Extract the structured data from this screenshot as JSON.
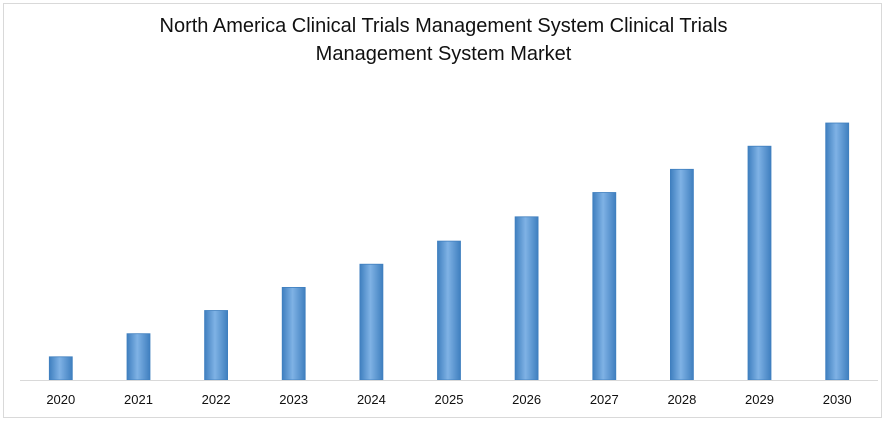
{
  "chart_data": {
    "type": "bar",
    "title_line1": "North America Clinical Trials Management System Clinical Trials",
    "title_line2": "Management System Market",
    "categories": [
      "2020",
      "2021",
      "2022",
      "2023",
      "2024",
      "2025",
      "2026",
      "2027",
      "2028",
      "2029",
      "2030"
    ],
    "values": [
      1.0,
      2.0,
      3.0,
      4.0,
      5.0,
      6.0,
      7.05,
      8.1,
      9.1,
      10.1,
      11.1
    ],
    "xlabel": "",
    "ylabel": "",
    "ylim": [
      0,
      11.1
    ],
    "grid": false,
    "legend": "none",
    "colors": {
      "bar_fill": "#5b9bd5",
      "bar_light": "#7fb2e5",
      "bar_dark": "#3f7fbf",
      "axis": "#d9d9d9"
    }
  }
}
